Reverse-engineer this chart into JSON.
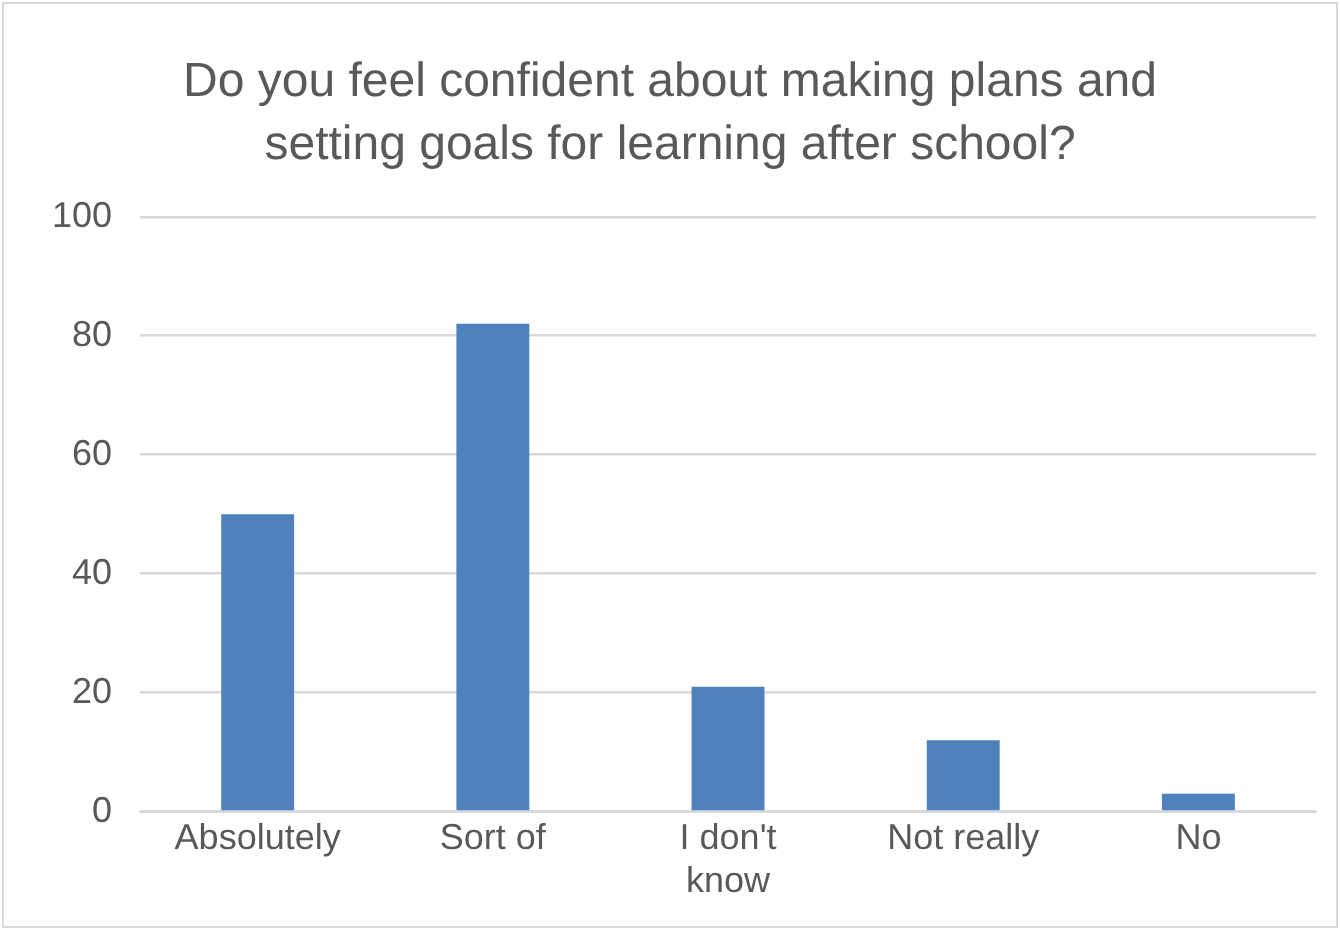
{
  "chart_data": {
    "type": "bar",
    "title": "Do you feel confident about making plans and setting goals for learning after school?",
    "categories": [
      "Absolutely",
      "Sort of",
      "I don't know",
      "Not really",
      "No"
    ],
    "values": [
      50,
      82,
      21,
      12,
      3
    ],
    "color": "#4f81bd",
    "ylim": [
      0,
      100
    ],
    "yticks": [
      0,
      20,
      40,
      60,
      80,
      100
    ],
    "grid": "y",
    "legend": false
  }
}
